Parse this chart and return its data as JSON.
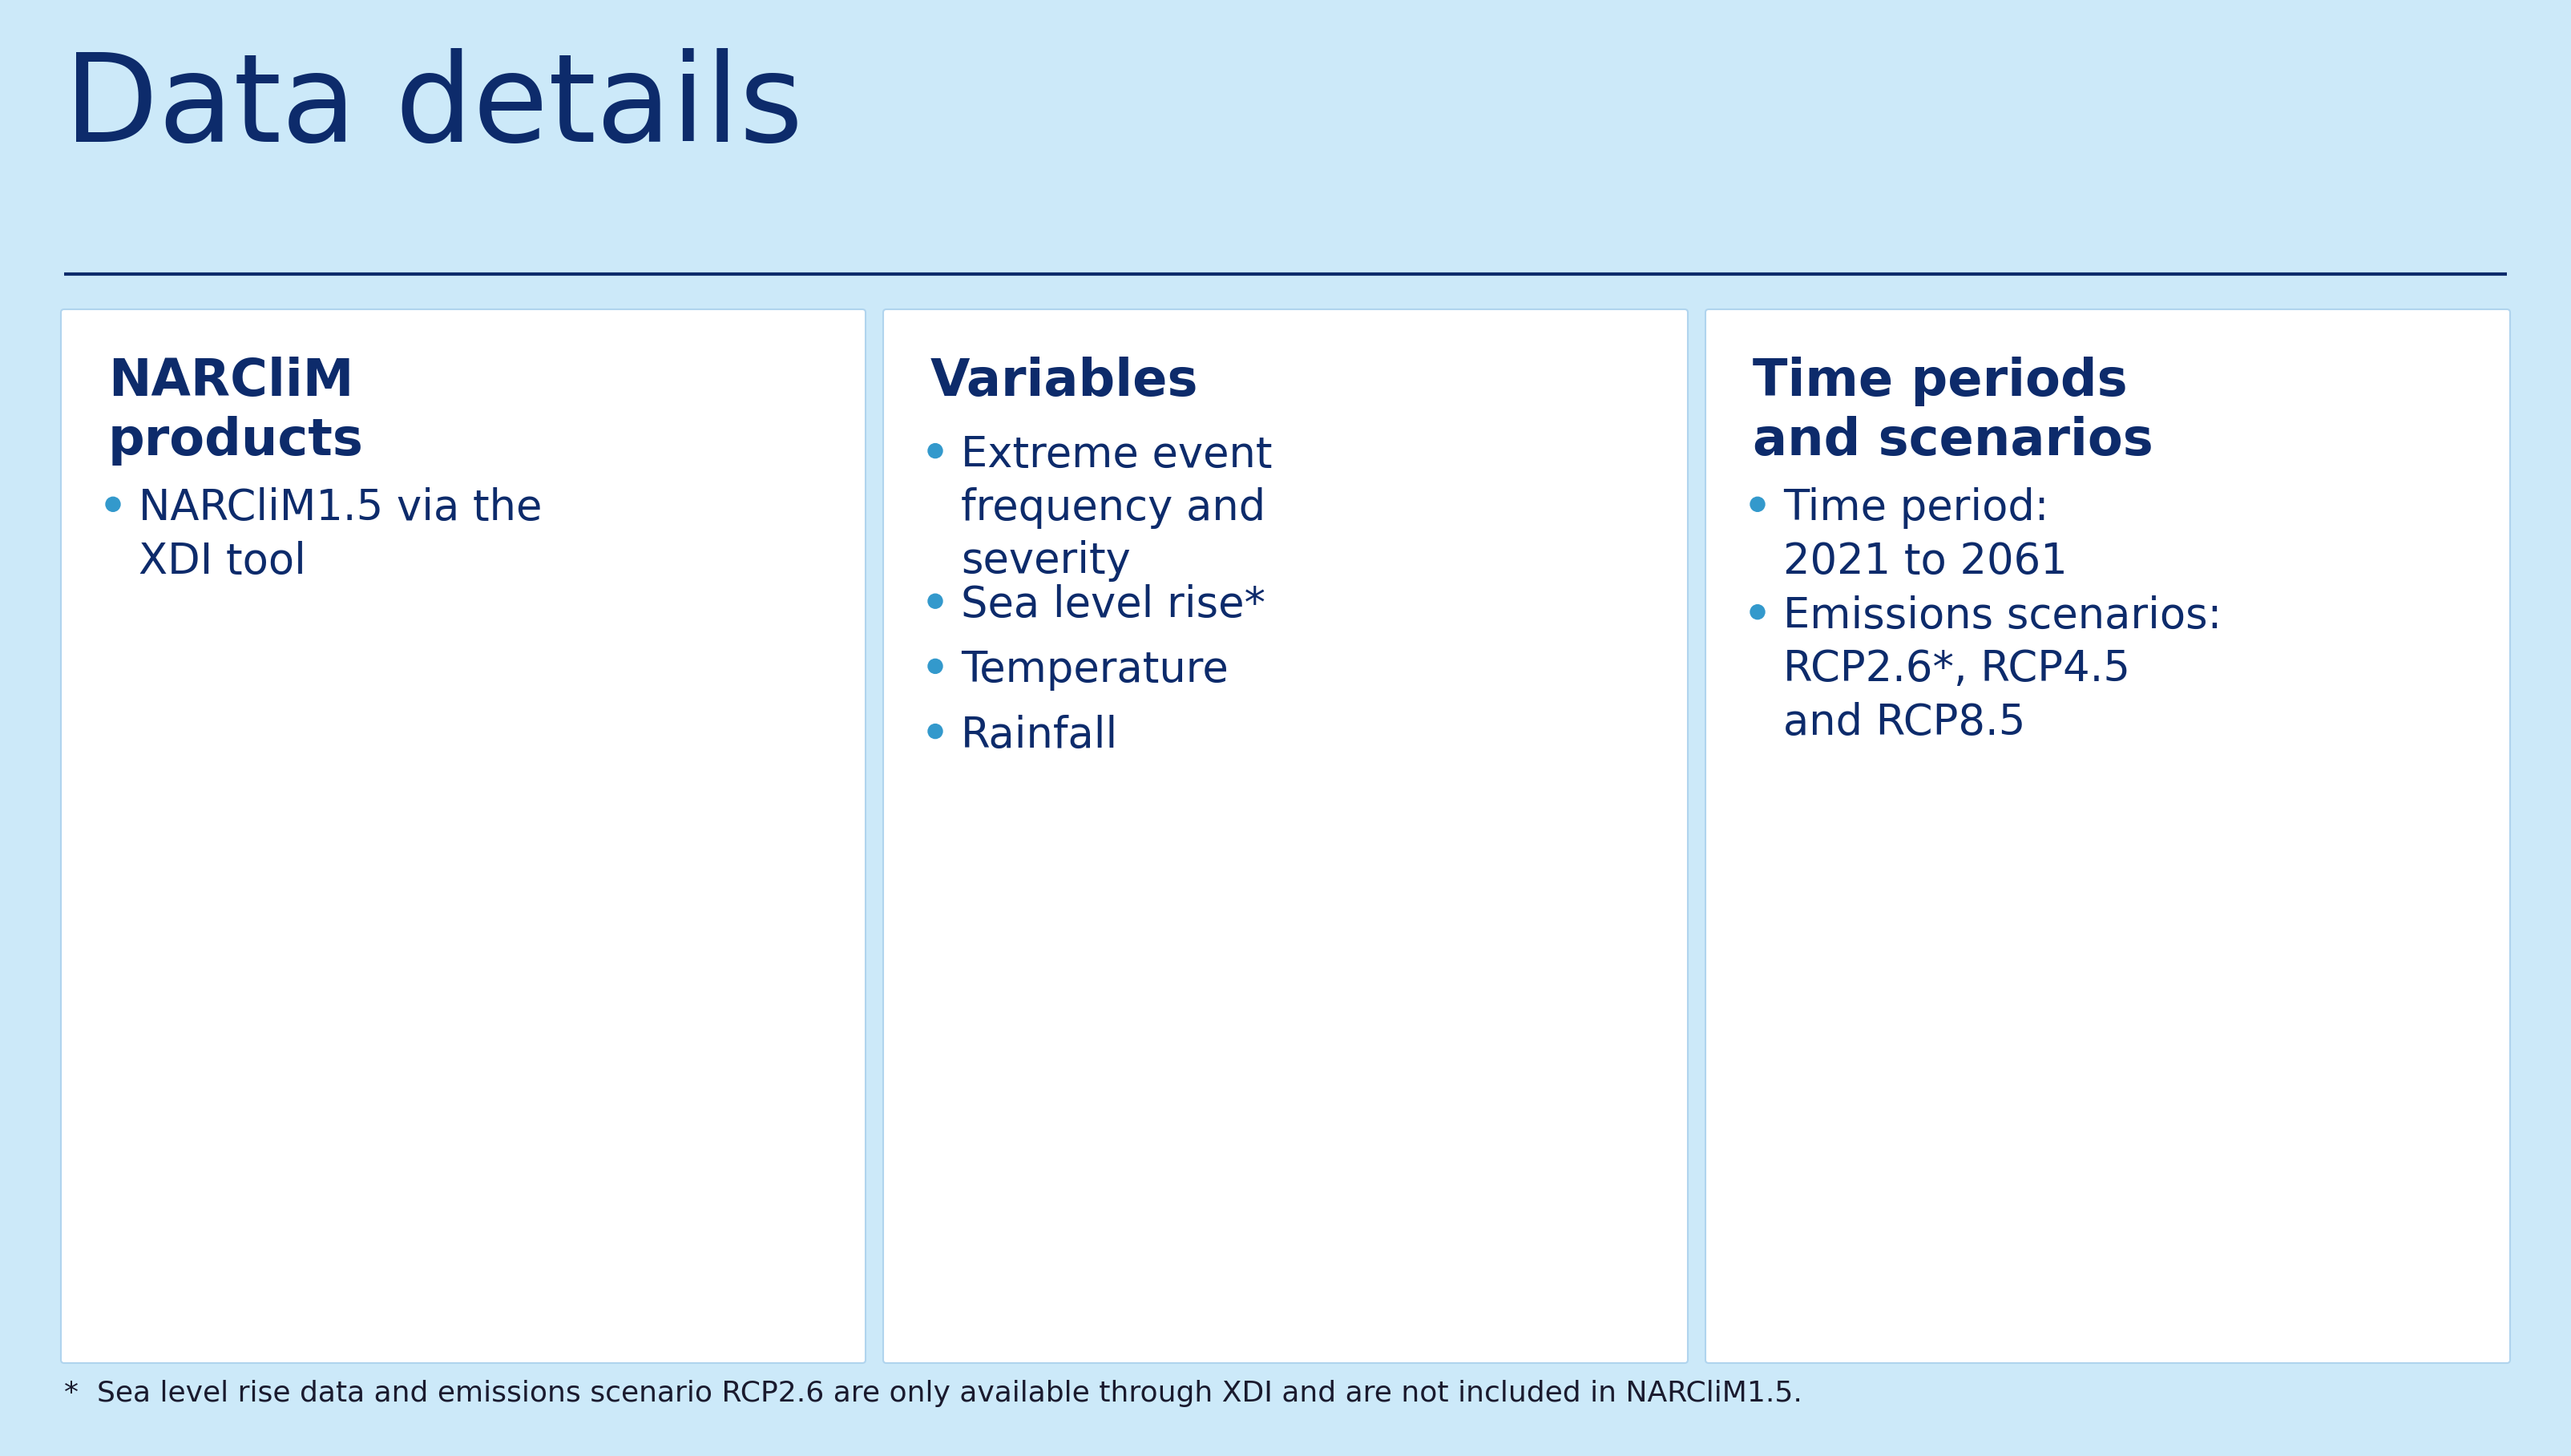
{
  "title": "Data details",
  "background_color": "#cce9f9",
  "title_color": "#0d2b6b",
  "title_fontsize": 110,
  "divider_color": "#0d2b6b",
  "card_bg_color": "#ffffff",
  "card_border_color": "#b0d4ee",
  "bullet_color": "#3399cc",
  "text_color": "#0d2b6b",
  "footnote_color": "#1a1a2e",
  "heading_fontsize": 46,
  "bullet_fontsize": 38,
  "footnote_fontsize": 26,
  "cards": [
    {
      "heading": "NARCliM\nproducts",
      "bullets": [
        "NARCliM1.5 via the\nXDI tool"
      ]
    },
    {
      "heading": "Variables",
      "bullets": [
        "Extreme event\nfrequency and\nseverity",
        "Sea level rise*",
        "Temperature",
        "Rainfall"
      ]
    },
    {
      "heading": "Time periods\nand scenarios",
      "bullets": [
        "Time period:\n2021 to 2061",
        "Emissions scenarios:\nRCP2.6*, RCP4.5\nand RCP8.5"
      ]
    }
  ],
  "footnote": "*  Sea level rise data and emissions scenario RCP2.6 are only available through XDI and are not included in NARCliM1.5."
}
